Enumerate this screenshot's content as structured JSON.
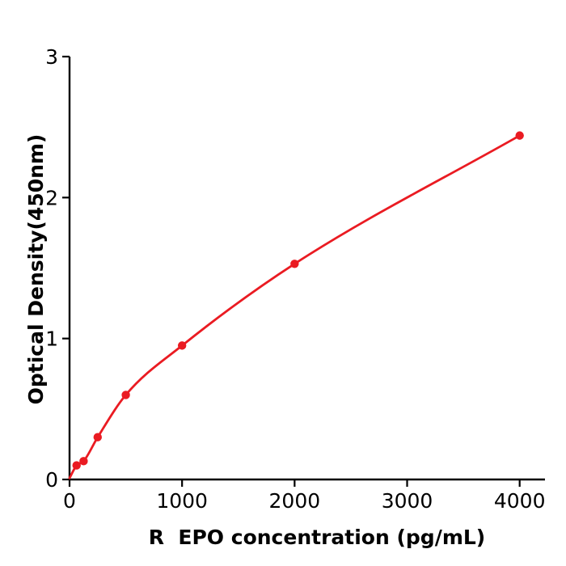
{
  "figure": {
    "background": "#ffffff",
    "axis_color": "#000000",
    "text_color": "#000000",
    "accent_red": "#ea1b22"
  },
  "chart_data": {
    "type": "scatter",
    "subtype": "standard-curve-with-fitted-line",
    "title": "",
    "xlabel": "R  EPO concentration (pg/mL)",
    "ylabel": "Optical Density(450nm)",
    "points": [
      {
        "x": 62.5,
        "y": 0.1
      },
      {
        "x": 125,
        "y": 0.13
      },
      {
        "x": 250,
        "y": 0.3
      },
      {
        "x": 500,
        "y": 0.6
      },
      {
        "x": 1000,
        "y": 0.95
      },
      {
        "x": 2000,
        "y": 1.53
      },
      {
        "x": 4000,
        "y": 2.44
      }
    ],
    "fit_curve_start": {
      "x": 0,
      "y": 0.01
    },
    "xticks": [
      0,
      1000,
      2000,
      3000,
      4000
    ],
    "yticks": [
      0,
      1,
      2,
      3
    ],
    "xlim": [
      0,
      4225
    ],
    "ylim": [
      0,
      3
    ],
    "grid": false,
    "legend": null,
    "marker_style": "filled-circle",
    "line_color": "#ea1b22",
    "marker_color": "#ea1b22"
  }
}
